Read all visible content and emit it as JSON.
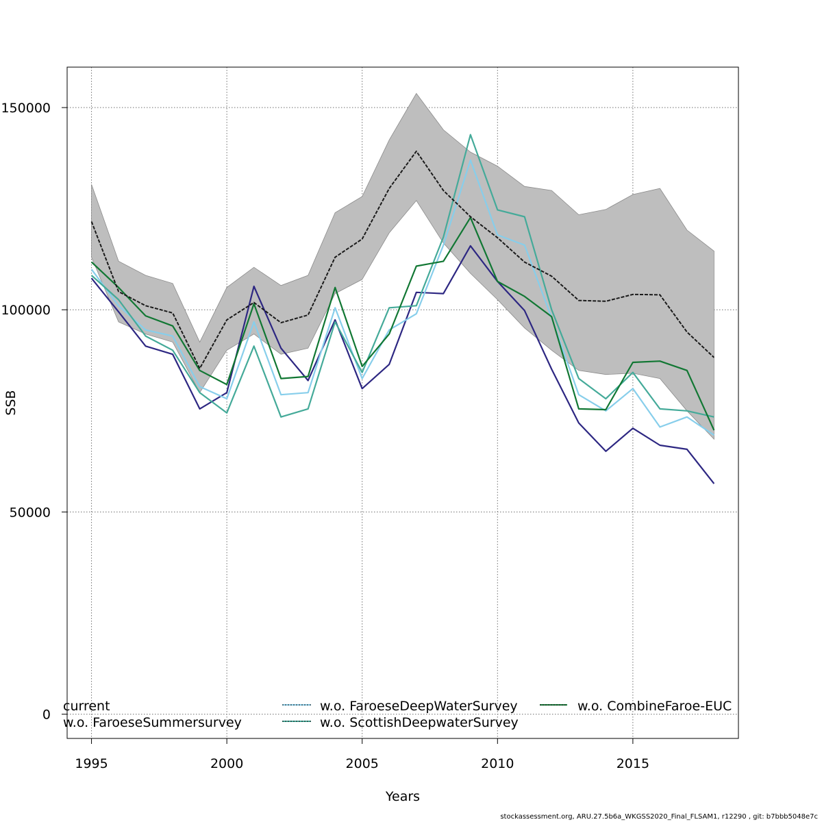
{
  "chart_data": {
    "type": "line",
    "title": "",
    "xlabel": "Years",
    "ylabel": "SSB",
    "xlim": [
      1994.1,
      2018.9
    ],
    "ylim": [
      -6000,
      160000
    ],
    "x_ticks": [
      1995,
      2000,
      2005,
      2010,
      2015
    ],
    "y_ticks": [
      0,
      50000,
      100000,
      150000
    ],
    "grid": true,
    "legend_position": "bottom",
    "x": [
      1995,
      1996,
      1997,
      1998,
      1999,
      2000,
      2001,
      2002,
      2003,
      2004,
      2005,
      2006,
      2007,
      2008,
      2009,
      2010,
      2011,
      2012,
      2013,
      2014,
      2015,
      2016,
      2017,
      2018
    ],
    "confidence_band": {
      "color": "#bebebe",
      "upper": [
        131000,
        112000,
        108500,
        106500,
        92000,
        105500,
        110500,
        106000,
        108500,
        124000,
        128000,
        142000,
        153500,
        144500,
        139000,
        135500,
        130500,
        129500,
        123500,
        124800,
        128500,
        130000,
        119700,
        114500
      ],
      "lower": [
        113000,
        97000,
        94000,
        92000,
        79500,
        90000,
        94000,
        89000,
        90500,
        104000,
        107500,
        119000,
        127000,
        116500,
        109000,
        102500,
        95500,
        90000,
        85000,
        84000,
        84300,
        83000,
        75000,
        68000
      ]
    },
    "series": [
      {
        "name": "current",
        "color": "#1a1a1a",
        "dashed": true,
        "values": [
          121800,
          104500,
          101000,
          99200,
          85500,
          97500,
          101800,
          96800,
          98700,
          113000,
          117500,
          130000,
          139200,
          129500,
          123000,
          117800,
          111800,
          108300,
          102300,
          102100,
          103800,
          103700,
          94500,
          88200
        ]
      },
      {
        "name": "w.o. FaroeseSummersurvey",
        "color": "#2d2782",
        "dashed": false,
        "values": [
          107800,
          99500,
          91000,
          89000,
          75500,
          79500,
          105800,
          90500,
          82500,
          97500,
          80500,
          86500,
          104300,
          104000,
          115800,
          107000,
          99800,
          85300,
          72000,
          65000,
          70700,
          66500,
          65500,
          57000
        ]
      },
      {
        "name": "w.o. FaroeseDeepWaterSurvey",
        "color": "#87ceeb",
        "dashed": false,
        "values": [
          110000,
          101000,
          95000,
          93500,
          81000,
          78000,
          97000,
          79000,
          79500,
          100500,
          83000,
          95000,
          99000,
          116000,
          137000,
          118500,
          116000,
          98000,
          79000,
          75000,
          80500,
          71000,
          73500,
          69000
        ]
      },
      {
        "name": "w.o. ScottishDeepwaterSurvey",
        "color": "#44aa99",
        "dashed": false,
        "values": [
          108500,
          102500,
          93500,
          90000,
          79500,
          74500,
          91000,
          73500,
          75500,
          97000,
          84500,
          100500,
          101000,
          118000,
          143300,
          124700,
          123000,
          100000,
          83000,
          78000,
          84500,
          75500,
          75000,
          73500
        ]
      },
      {
        "name": "w.o. CombineFaroe-EUC",
        "color": "#117733",
        "dashed": false,
        "values": [
          111800,
          105500,
          98500,
          96000,
          85000,
          81500,
          101500,
          83000,
          83500,
          105500,
          86000,
          94000,
          110800,
          112000,
          122800,
          107000,
          103300,
          98300,
          75500,
          75300,
          87000,
          87300,
          85000,
          70200
        ]
      }
    ]
  },
  "footer": {
    "credit": "stockassessment.org, ARU.27.5b6a_WKGSS2020_Final_FLSAM1, r12290 , git: b7bbb5048e7c"
  }
}
